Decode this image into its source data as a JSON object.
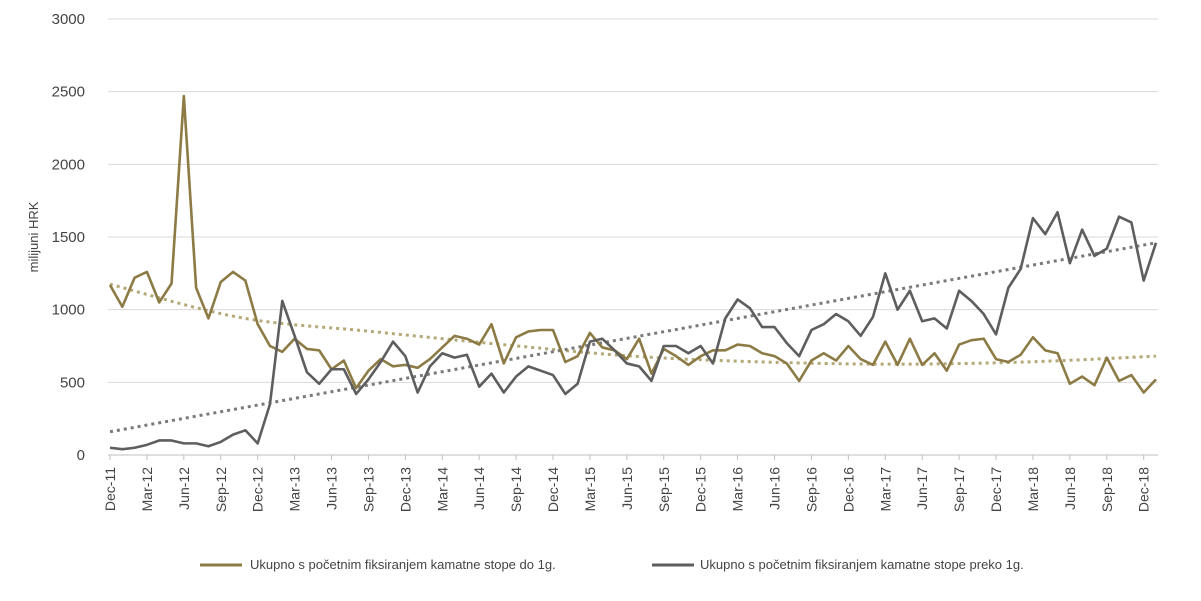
{
  "chart_data": {
    "type": "line",
    "title": "",
    "ylabel": "milijuni HRK",
    "xlabel": "",
    "ylim": [
      0,
      3000
    ],
    "y_ticks": [
      0,
      500,
      1000,
      1500,
      2000,
      2500,
      3000
    ],
    "grid": true,
    "legend_position": "bottom",
    "x_tick_labels": [
      "Dec-11",
      "Mar-12",
      "Jun-12",
      "Sep-12",
      "Dec-12",
      "Mar-13",
      "Jun-13",
      "Sep-13",
      "Dec-13",
      "Mar-14",
      "Jun-14",
      "Sep-14",
      "Dec-14",
      "Mar-15",
      "Jun-15",
      "Sep-15",
      "Dec-15",
      "Mar-16",
      "Jun-16",
      "Sep-16",
      "Dec-16",
      "Mar-17",
      "Jun-17",
      "Sep-17",
      "Dec-17",
      "Mar-18",
      "Jun-18",
      "Sep-18",
      "Dec-18"
    ],
    "x_start": "Dec-11",
    "x_end": "Jan-19",
    "series": [
      {
        "name": "Ukupno s početnim fiksiranjem kamatne stope do 1g.",
        "color": "#8C7B45",
        "trend_color": "#B5A877",
        "trend_type": "polynomial",
        "values": [
          1170,
          1020,
          1220,
          1260,
          1050,
          1180,
          2470,
          1150,
          940,
          1190,
          1260,
          1200,
          900,
          750,
          710,
          800,
          730,
          720,
          590,
          650,
          460,
          580,
          660,
          610,
          620,
          600,
          660,
          740,
          820,
          800,
          760,
          900,
          630,
          810,
          850,
          860,
          860,
          640,
          680,
          840,
          740,
          720,
          660,
          800,
          560,
          730,
          680,
          620,
          680,
          720,
          720,
          760,
          750,
          700,
          680,
          630,
          510,
          650,
          700,
          650,
          750,
          660,
          620,
          780,
          620,
          800,
          620,
          700,
          580,
          760,
          790,
          800,
          660,
          640,
          690,
          810,
          720,
          700,
          490,
          540,
          480,
          670,
          510,
          550,
          430,
          520
        ],
        "trend": [
          1175,
          945,
          850,
          760,
          680,
          640,
          625,
          640,
          680
        ]
      },
      {
        "name": "Ukupno s početnim fiksiranjem kamatne stope preko 1g.",
        "color": "#5E5E5E",
        "trend_color": "#7A7A7A",
        "trend_type": "linear",
        "values": [
          50,
          40,
          50,
          70,
          100,
          100,
          80,
          80,
          60,
          90,
          140,
          170,
          80,
          350,
          1060,
          820,
          570,
          490,
          590,
          590,
          420,
          520,
          640,
          780,
          680,
          430,
          610,
          700,
          670,
          690,
          470,
          560,
          430,
          540,
          610,
          580,
          550,
          420,
          490,
          780,
          800,
          720,
          630,
          610,
          510,
          750,
          750,
          700,
          750,
          630,
          940,
          1070,
          1010,
          880,
          880,
          770,
          680,
          860,
          900,
          970,
          920,
          820,
          950,
          1250,
          1000,
          1130,
          920,
          940,
          870,
          1130,
          1060,
          970,
          830,
          1150,
          1280,
          1630,
          1520,
          1670,
          1320,
          1550,
          1370,
          1420,
          1640,
          1600,
          1200,
          1460
        ],
        "trend": [
          160,
          1460
        ]
      }
    ]
  }
}
